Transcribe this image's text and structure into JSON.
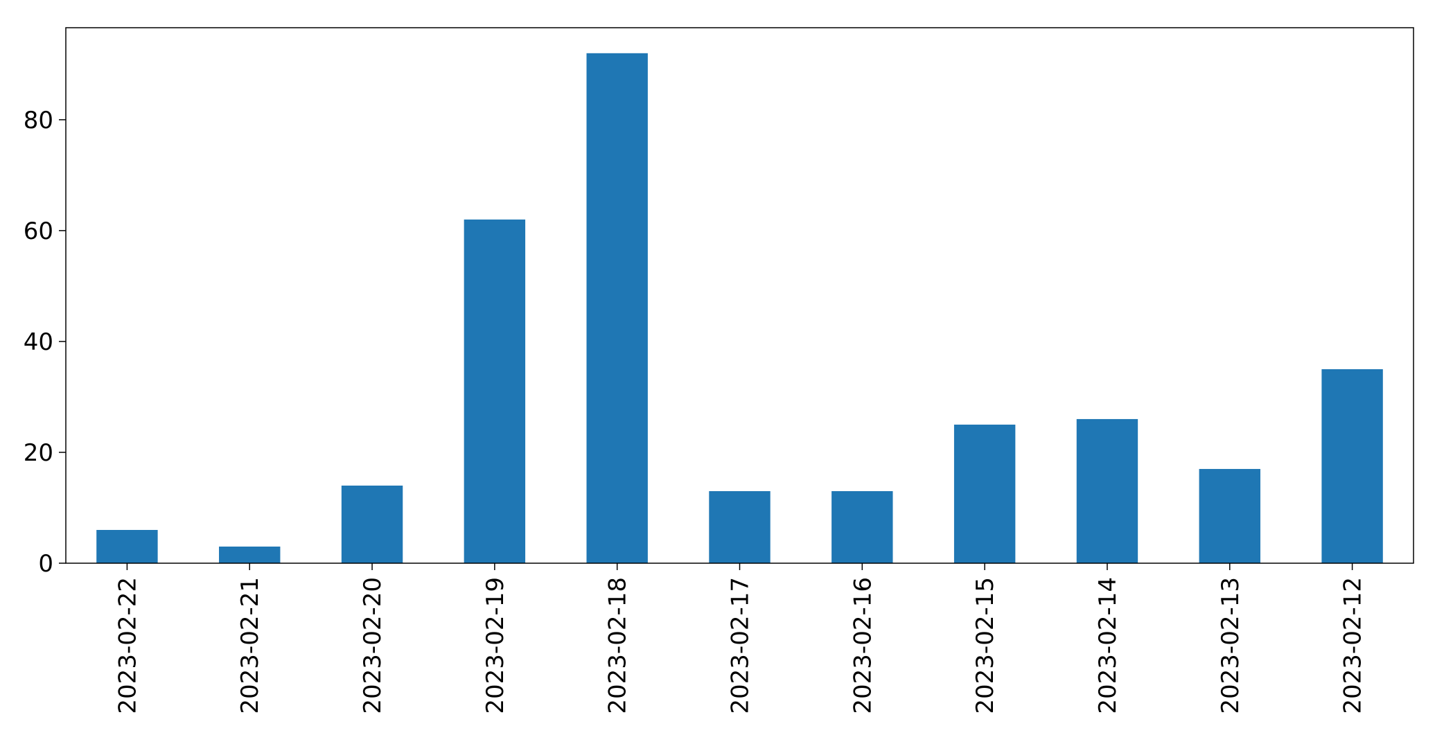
{
  "chart_data": {
    "type": "bar",
    "title": "",
    "xlabel": "",
    "ylabel": "",
    "categories": [
      "2023-02-22",
      "2023-02-21",
      "2023-02-20",
      "2023-02-19",
      "2023-02-18",
      "2023-02-17",
      "2023-02-16",
      "2023-02-15",
      "2023-02-14",
      "2023-02-13",
      "2023-02-12"
    ],
    "values": [
      6,
      3,
      14,
      62,
      92,
      13,
      13,
      25,
      26,
      17,
      35
    ],
    "ylim": [
      0,
      96.6
    ],
    "yticks": [
      0,
      20,
      40,
      60,
      80
    ],
    "bar_color": "#1f77b4",
    "grid": false,
    "legend": "none"
  }
}
